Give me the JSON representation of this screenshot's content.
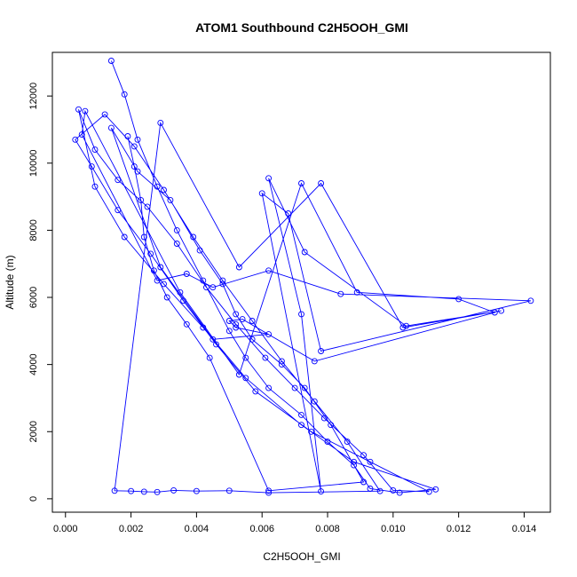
{
  "chart_data": {
    "type": "line",
    "title": "ATOM1 Southbound C2H5OOH_GMI",
    "xlabel": "C2H5OOH_GMI",
    "ylabel": "Altitude (m)",
    "xlim": [
      -0.0004,
      0.0148
    ],
    "ylim": [
      -400,
      13300
    ],
    "x_ticks": [
      0.0,
      0.002,
      0.004,
      0.006,
      0.008,
      0.01,
      0.012,
      0.014
    ],
    "x_tick_labels": [
      "0.000",
      "0.002",
      "0.004",
      "0.006",
      "0.008",
      "0.010",
      "0.012",
      "0.014"
    ],
    "y_ticks": [
      0,
      2000,
      4000,
      6000,
      8000,
      10000,
      12000
    ],
    "y_tick_labels": [
      "0",
      "2000",
      "4000",
      "6000",
      "8000",
      "10000",
      "12000"
    ],
    "grid": false,
    "series": [
      {
        "color": "#0000ff",
        "marker": "open-circle",
        "x": [
          0.0014,
          0.0018,
          0.0022,
          0.0028,
          0.0034,
          0.0042,
          0.005,
          0.0055,
          0.0062,
          0.0072,
          0.008,
          0.0088,
          0.0093,
          0.0102,
          0.0113,
          0.0088,
          0.0072,
          0.0055,
          0.0042,
          0.003,
          0.0018,
          0.0009,
          0.0004,
          0.0009,
          0.0016,
          0.0025,
          0.0034,
          0.0043,
          0.0052,
          0.0061,
          0.007,
          0.0079,
          0.0091,
          0.01,
          0.0111,
          0.0093,
          0.0075,
          0.0058,
          0.0046,
          0.0036,
          0.0026,
          0.0016,
          0.0008,
          0.0003,
          0.0012,
          0.0021,
          0.003,
          0.0039,
          0.0048,
          0.0057,
          0.0066,
          0.0076,
          0.0086,
          0.0096,
          0.0062,
          0.005,
          0.004,
          0.0033,
          0.0028,
          0.0024,
          0.002,
          0.0015,
          0.0029,
          0.0053,
          0.0078,
          0.0103,
          0.0133,
          0.0104,
          0.0073,
          0.0062,
          0.0072,
          0.0078,
          0.006,
          0.0068,
          0.0078,
          0.0142,
          0.0084,
          0.0062,
          0.0045,
          0.0037,
          0.0028,
          0.0005,
          0.0006,
          0.0035,
          0.0053,
          0.0072,
          0.0089,
          0.012,
          0.0131,
          0.0076,
          0.0054,
          0.005,
          0.0052,
          0.0062,
          0.0045,
          0.0029,
          0.0014,
          0.0022,
          0.0032,
          0.0041,
          0.0048,
          0.0052,
          0.0057,
          0.0066,
          0.0073,
          0.0081,
          0.0091,
          0.0062,
          0.0044,
          0.0037,
          0.0031,
          0.0027,
          0.0024,
          0.0023,
          0.0021,
          0.0019
        ],
        "y": [
          13050,
          12050,
          10700,
          9300,
          8000,
          6500,
          5000,
          4200,
          3300,
          2500,
          1700,
          1000,
          300,
          180,
          280,
          1100,
          2200,
          3600,
          5100,
          6400,
          7800,
          9300,
          11600,
          10400,
          9500,
          8700,
          7600,
          6300,
          5200,
          4200,
          3300,
          2400,
          1300,
          250,
          210,
          1100,
          2000,
          3200,
          4600,
          5900,
          7300,
          8600,
          9900,
          10700,
          11450,
          10500,
          9200,
          7800,
          6500,
          5300,
          4100,
          2900,
          1700,
          230,
          180,
          240,
          230,
          250,
          200,
          210,
          230,
          240,
          11200,
          6900,
          9400,
          5100,
          5600,
          5150,
          7350,
          9550,
          5500,
          220,
          9100,
          8500,
          4400,
          5900,
          6100,
          6800,
          6300,
          6700,
          6500,
          10850,
          11550,
          6150,
          3700,
          9400,
          6150,
          5950,
          5550,
          4100,
          5350,
          5300,
          5100,
          4900,
          4750,
          6900,
          11050,
          9750,
          8900,
          7400,
          6400,
          5500,
          4750,
          4000,
          3300,
          2200,
          500,
          240,
          4200,
          5200,
          6000,
          6800,
          7800,
          8900,
          9900,
          10800
        ]
      }
    ]
  }
}
